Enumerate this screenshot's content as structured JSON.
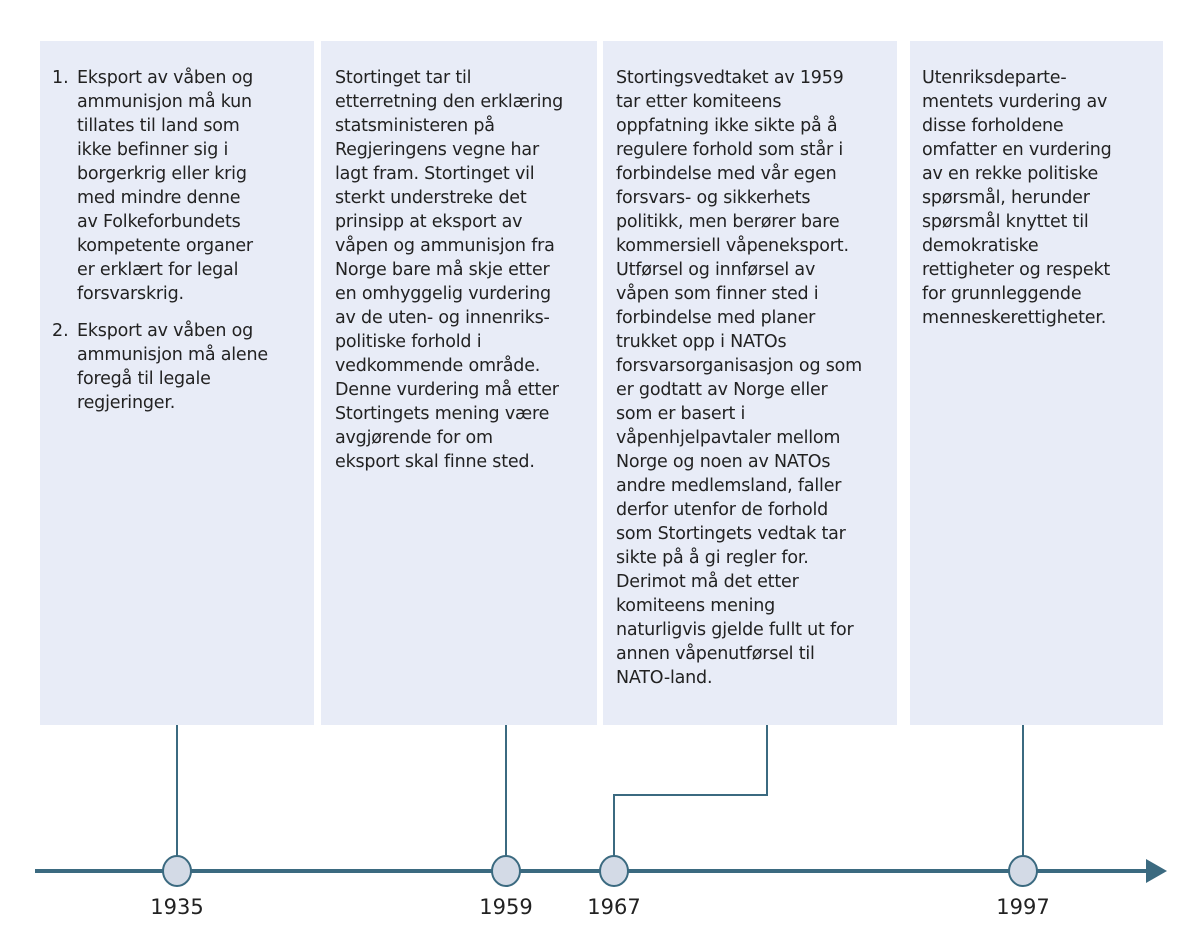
{
  "colors": {
    "axis": "#3b6a80",
    "panel": "#e8ecf7",
    "marker_fill": "#d3dae6"
  },
  "panels": [
    {
      "items": [
        {
          "number": "1.",
          "text": "Eksport av våben og\nammunisjon må kun\ntillates til land som\nikke befinner sig i\nborgerkrig eller krig\nmed mindre denne\nav Folkeforbundets\nkompetente organer\ner erklært for legal\nforsvarskrig."
        },
        {
          "number": "2.",
          "text": "Eksport av våben og\nammunisjon må alene\nforegå til legale\nregjeringer."
        }
      ]
    },
    {
      "text": "Stortinget tar til\netterretning den erklæring\nstatsministeren på\nRegjeringens vegne har\nlagt fram. Stortinget vil\nsterkt understreke det\nprinsipp at eksport av\nvåpen og ammunisjon fra\nNorge bare må skje etter\nen omhyggelig vurdering\nav de uten- og innenriks-\npolitiske forhold i\nvedkommende område.\nDenne vurdering må etter\nStortingets mening være\navgjørende for om\neksport skal finne sted."
    },
    {
      "text": "Stortingsvedtaket av 1959\ntar etter komiteens\noppfatning ikke sikte på å\nregulere forhold som står i\nforbindelse med vår egen\nforsvars- og sikkerhets\npolitikk, men berører bare\nkommersiell våpeneksport.\nUtførsel og innførsel av\nvåpen som finner sted i\nforbindelse med planer\ntrukket opp i NATOs\nforsvarsorganisasjon og som\ner godtatt av Norge eller\nsom er basert i\nvåpenhjelpavtaler mellom\nNorge og noen av NATOs\nandre medlemsland, faller\nderfor utenfor de forhold\nsom Stortingets vedtak tar\nsikte på å gi regler for.\nDerimot må det etter\nkomiteens mening\nnaturligvis gjelde fullt ut for\nannen våpenutførsel til\nNATO-land."
    },
    {
      "text": "Utenriksdeparte-\nmentets vurdering av\ndisse forholdene\nomfatter en vurdering\nav en rekke politiske\nspørsmål, herunder\nspørsmål knyttet til\ndemokratiske\nrettigheter og respekt\nfor grunnleggende\nmenneskerettigheter."
    }
  ],
  "timeline": {
    "years": [
      "1935",
      "1959",
      "1967",
      "1997"
    ]
  }
}
